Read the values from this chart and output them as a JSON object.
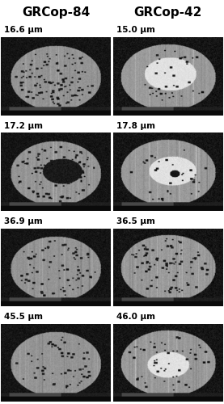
{
  "col1_header": "GRCop-84",
  "col2_header": "GRCop-42",
  "col1_labels": [
    "16.6 μm",
    "17.2 μm",
    "36.9 μm",
    "45.5 μm"
  ],
  "col2_labels": [
    "15.0 μm",
    "17.8 μm",
    "36.5 μm",
    "46.0 μm"
  ],
  "header_fontsize": 11,
  "label_fontsize": 7.5,
  "background_color": "#ffffff",
  "text_color": "#000000",
  "n_rows": 4,
  "n_cols": 2,
  "fig_width": 2.77,
  "fig_height": 5.0,
  "dpi": 100
}
